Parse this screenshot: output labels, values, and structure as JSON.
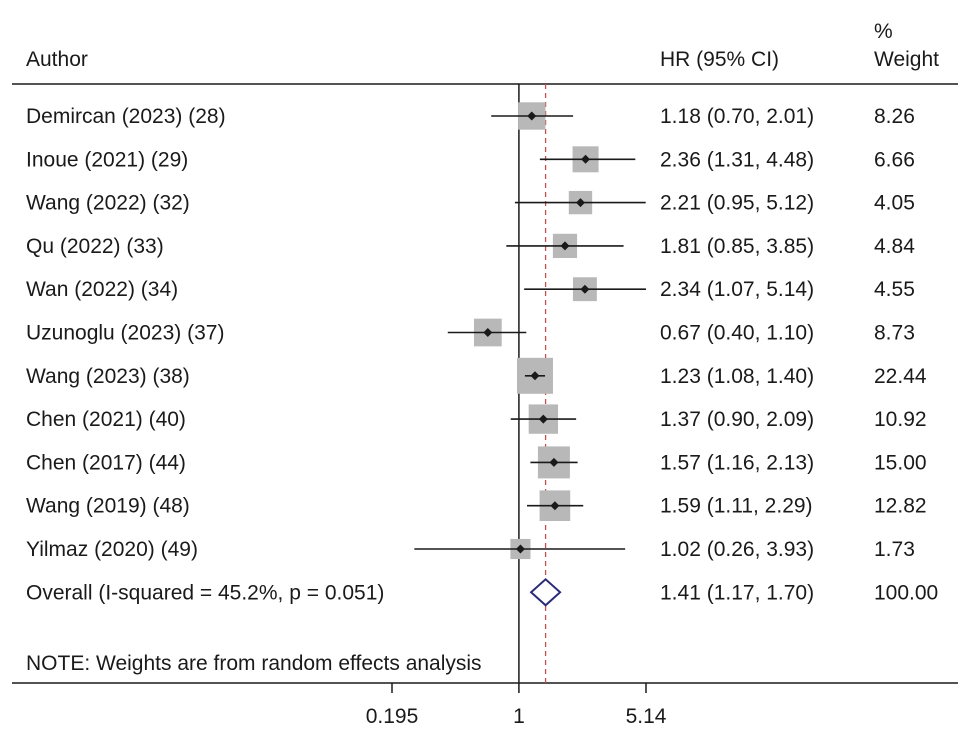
{
  "chart_data": {
    "type": "forest",
    "headers": {
      "author": "Author",
      "hr_ci": "HR (95% CI)",
      "weight_line1": "%",
      "weight_line2": "Weight"
    },
    "x_scale": "log",
    "x_ticks": [
      "0.195",
      "1",
      "5.14"
    ],
    "xlim": [
      0.195,
      5.14
    ],
    "reference_line": 1,
    "studies": [
      {
        "label": "Demircan (2023) (28)",
        "hr": 1.18,
        "lo": 0.7,
        "hi": 2.01,
        "hr_text": "1.18 (0.70, 2.01)",
        "weight": 8.26,
        "weight_text": "8.26"
      },
      {
        "label": "Inoue (2021) (29)",
        "hr": 2.36,
        "lo": 1.31,
        "hi": 4.48,
        "hr_text": "2.36 (1.31, 4.48)",
        "weight": 6.66,
        "weight_text": "6.66"
      },
      {
        "label": "Wang (2022) (32)",
        "hr": 2.21,
        "lo": 0.95,
        "hi": 5.12,
        "hr_text": "2.21 (0.95, 5.12)",
        "weight": 4.05,
        "weight_text": "4.05"
      },
      {
        "label": "Qu (2022) (33)",
        "hr": 1.81,
        "lo": 0.85,
        "hi": 3.85,
        "hr_text": "1.81 (0.85, 3.85)",
        "weight": 4.84,
        "weight_text": "4.84"
      },
      {
        "label": "Wan (2022) (34)",
        "hr": 2.34,
        "lo": 1.07,
        "hi": 5.14,
        "hr_text": "2.34 (1.07, 5.14)",
        "weight": 4.55,
        "weight_text": "4.55"
      },
      {
        "label": "Uzunoglu (2023) (37)",
        "hr": 0.67,
        "lo": 0.4,
        "hi": 1.1,
        "hr_text": "0.67 (0.40, 1.10)",
        "weight": 8.73,
        "weight_text": "8.73"
      },
      {
        "label": "Wang (2023) (38)",
        "hr": 1.23,
        "lo": 1.08,
        "hi": 1.4,
        "hr_text": "1.23 (1.08, 1.40)",
        "weight": 22.44,
        "weight_text": "22.44"
      },
      {
        "label": "Chen (2021) (40)",
        "hr": 1.37,
        "lo": 0.9,
        "hi": 2.09,
        "hr_text": "1.37 (0.90, 2.09)",
        "weight": 10.92,
        "weight_text": "10.92"
      },
      {
        "label": "Chen (2017) (44)",
        "hr": 1.57,
        "lo": 1.16,
        "hi": 2.13,
        "hr_text": "1.57 (1.16, 2.13)",
        "weight": 15.0,
        "weight_text": "15.00"
      },
      {
        "label": "Wang (2019) (48)",
        "hr": 1.59,
        "lo": 1.11,
        "hi": 2.29,
        "hr_text": "1.59 (1.11, 2.29)",
        "weight": 12.82,
        "weight_text": "12.82"
      },
      {
        "label": "Yilmaz (2020) (49)",
        "hr": 1.02,
        "lo": 0.26,
        "hi": 3.93,
        "hr_text": "1.02 (0.26, 3.93)",
        "weight": 1.73,
        "weight_text": "1.73"
      }
    ],
    "overall": {
      "label": "Overall  (I-squared = 45.2%, p = 0.051)",
      "hr": 1.41,
      "lo": 1.17,
      "hi": 1.7,
      "hr_text": "1.41 (1.17, 1.70)",
      "weight_text": "100.00"
    },
    "note": "NOTE: Weights are from random effects analysis",
    "colors": {
      "text": "#1a1a1a",
      "box": "#b8b8b8",
      "axis": "#1a1a1a",
      "overall_line": "#c0504d",
      "diamond": "#2b2b7a"
    }
  }
}
